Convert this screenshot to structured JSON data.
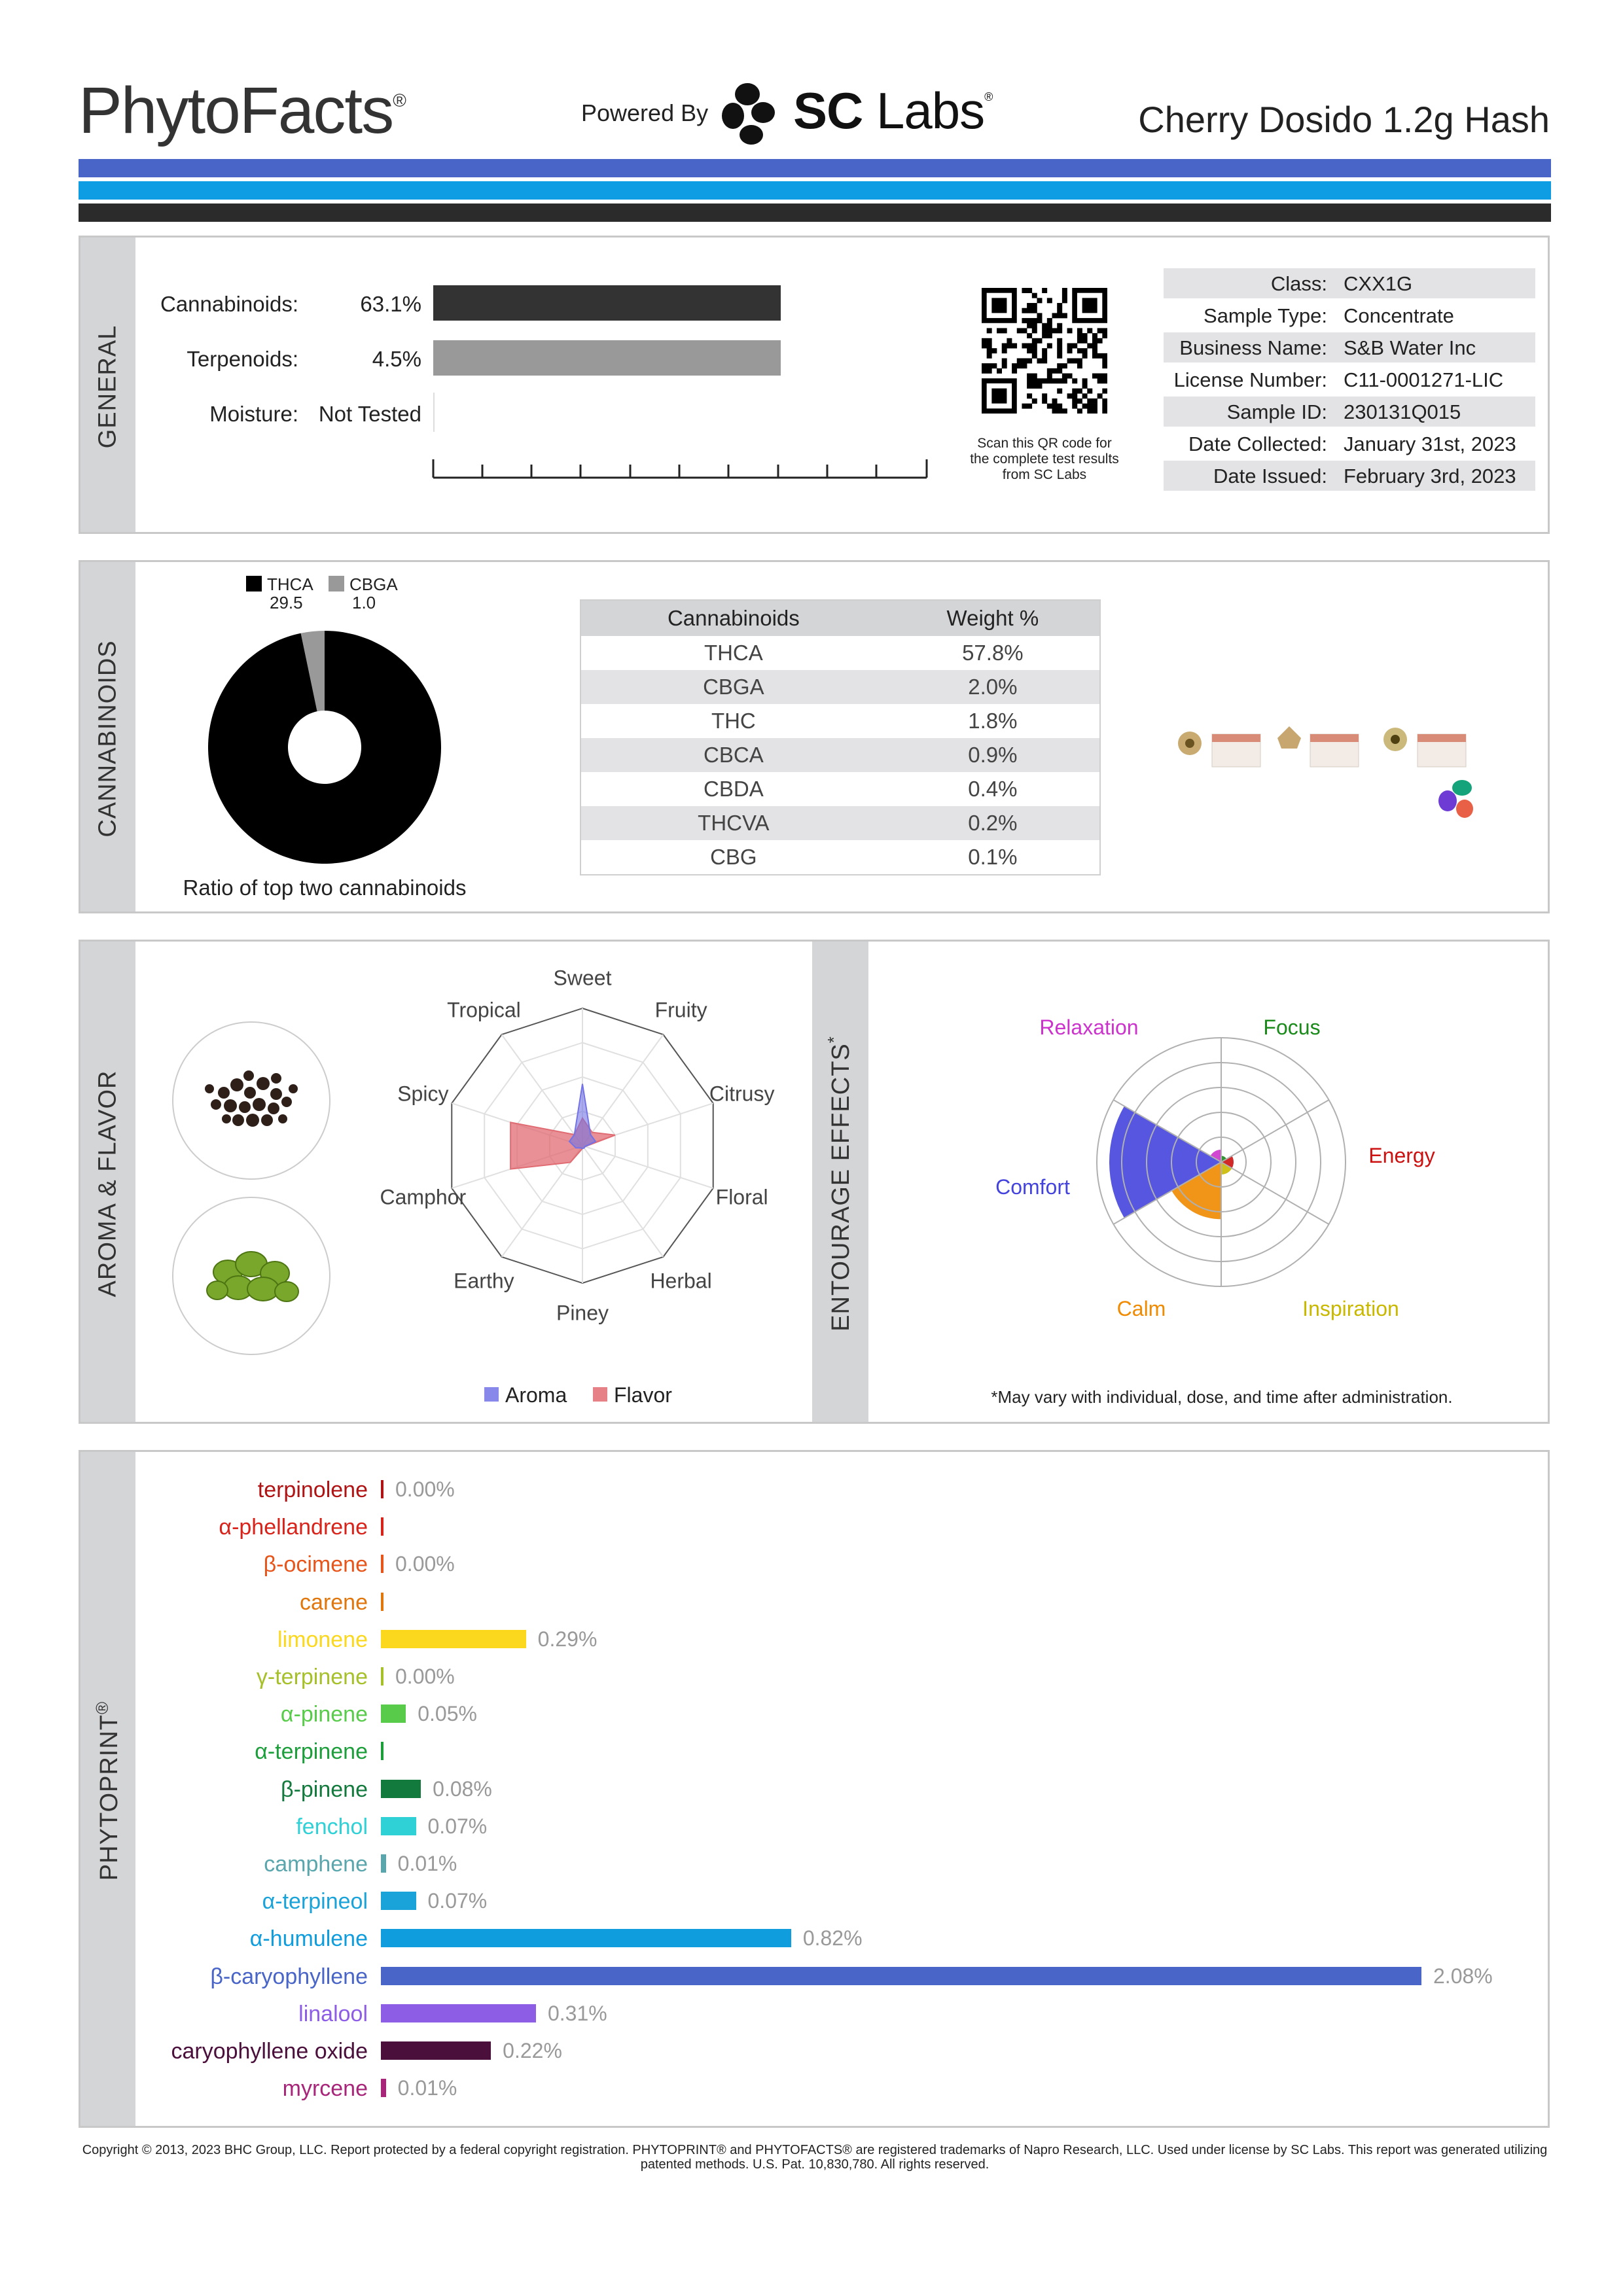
{
  "header": {
    "logo": "PhytoFacts",
    "logo_mark": "®",
    "powered_by": "Powered By",
    "lab_name_bold": "SC",
    "lab_name_rest": " Labs",
    "lab_mark": "®",
    "product_name": "Cherry Dosido 1.2g Hash"
  },
  "general": {
    "section_label": "GENERAL",
    "cannabinoids_label": "Cannabinoids:",
    "cannabinoids_value": "63.1%",
    "cannabinoids_fraction": 0.631,
    "terpenoids_label": "Terpenoids:",
    "terpenoids_value": "4.5%",
    "terpenoids_fraction": 0.045,
    "moisture_label": "Moisture:",
    "moisture_value": "Not Tested",
    "qr_note": "Scan this QR code for the complete test results from SC Labs",
    "info": [
      {
        "key": "Class:",
        "value": "CXX1G"
      },
      {
        "key": "Sample Type:",
        "value": "Concentrate"
      },
      {
        "key": "Business Name:",
        "value": "S&B Water Inc"
      },
      {
        "key": "License Number:",
        "value": "C11-0001271-LIC"
      },
      {
        "key": "Sample ID:",
        "value": "230131Q015"
      },
      {
        "key": "Date Collected:",
        "value": "January 31st, 2023"
      },
      {
        "key": "Date Issued:",
        "value": "February 3rd, 2023"
      }
    ]
  },
  "cannabinoids": {
    "section_label": "CANNABINOIDS",
    "legend": [
      {
        "name": "THCA",
        "value": "29.5",
        "color": "#000000"
      },
      {
        "name": "CBGA",
        "value": "1.0",
        "color": "#999999"
      }
    ],
    "donut_caption": "Ratio of top two cannabinoids",
    "table_header": [
      "Cannabinoids",
      "Weight %"
    ],
    "table_rows": [
      [
        "THCA",
        "57.8%"
      ],
      [
        "CBGA",
        "2.0%"
      ],
      [
        "THC",
        "1.8%"
      ],
      [
        "CBCA",
        "0.9%"
      ],
      [
        "CBDA",
        "0.4%"
      ],
      [
        "THCVA",
        "0.2%"
      ],
      [
        "CBG",
        "0.1%"
      ]
    ]
  },
  "aroma": {
    "section_label": "AROMA & FLAVOR",
    "axes": [
      "Sweet",
      "Fruity",
      "Citrusy",
      "Floral",
      "Herbal",
      "Piney",
      "Earthy",
      "Camphor",
      "Spicy",
      "Tropical"
    ],
    "legend_aroma": "Aroma",
    "legend_flavor": "Flavor",
    "aroma_color": "#7373e6",
    "flavor_color": "#e06b72"
  },
  "entourage": {
    "section_label": "ENTOURAGE EFFECTS",
    "section_mark": "*",
    "labels": [
      {
        "text": "Relaxation",
        "color": "#cc33cc"
      },
      {
        "text": "Focus",
        "color": "#1a8a1a"
      },
      {
        "text": "Energy",
        "color": "#cc1111"
      },
      {
        "text": "Inspiration",
        "color": "#c9b800"
      },
      {
        "text": "Calm",
        "color": "#f08a00"
      },
      {
        "text": "Comfort",
        "color": "#4444dd"
      }
    ],
    "note": "*May vary with individual, dose, and time after administration."
  },
  "phytoprint": {
    "section_label": "PHYTOPRINT",
    "section_mark": "®",
    "terpenes": [
      {
        "name": "terpinolene",
        "value": "0.00%",
        "pct": 0.0,
        "color": "#b01313"
      },
      {
        "name": "α-phellandrene",
        "value": "",
        "pct": 0.0,
        "color": "#d8231b"
      },
      {
        "name": "β-ocimene",
        "value": "0.00%",
        "pct": 0.0,
        "color": "#e8551a"
      },
      {
        "name": "carene",
        "value": "",
        "pct": 0.0,
        "color": "#e0760c"
      },
      {
        "name": "limonene",
        "value": "0.29%",
        "pct": 0.29,
        "color": "#fbd81e"
      },
      {
        "name": "γ-terpinene",
        "value": "0.00%",
        "pct": 0.0,
        "color": "#a6c02a"
      },
      {
        "name": "α-pinene",
        "value": "0.05%",
        "pct": 0.05,
        "color": "#58cc4a"
      },
      {
        "name": "α-terpinene",
        "value": "",
        "pct": 0.0,
        "color": "#1c9e3b"
      },
      {
        "name": "β-pinene",
        "value": "0.08%",
        "pct": 0.08,
        "color": "#127a3c"
      },
      {
        "name": "fenchol",
        "value": "0.07%",
        "pct": 0.07,
        "color": "#2fd1d6"
      },
      {
        "name": "camphene",
        "value": "0.01%",
        "pct": 0.01,
        "color": "#5ba6ad"
      },
      {
        "name": "α-terpineol",
        "value": "0.07%",
        "pct": 0.07,
        "color": "#1aa3d9"
      },
      {
        "name": "α-humulene",
        "value": "0.82%",
        "pct": 0.82,
        "color": "#0f9ddd"
      },
      {
        "name": "β-caryophyllene",
        "value": "2.08%",
        "pct": 2.08,
        "color": "#4865c7"
      },
      {
        "name": "linalool",
        "value": "0.31%",
        "pct": 0.31,
        "color": "#8d5de6"
      },
      {
        "name": "caryophyllene oxide",
        "value": "0.22%",
        "pct": 0.22,
        "color": "#4a0f3b"
      },
      {
        "name": "myrcene",
        "value": "0.01%",
        "pct": 0.01,
        "color": "#a8267a"
      }
    ]
  },
  "footer": "Copyright © 2013, 2023 BHC Group, LLC. Report protected by a federal copyright registration. PHYTOPRINT® and PHYTOFACTS® are registered trademarks of Napro Research, LLC. Used under license by SC Labs. This report was generated utilizing patented methods. U.S. Pat. 10,830,780. All rights reserved."
}
